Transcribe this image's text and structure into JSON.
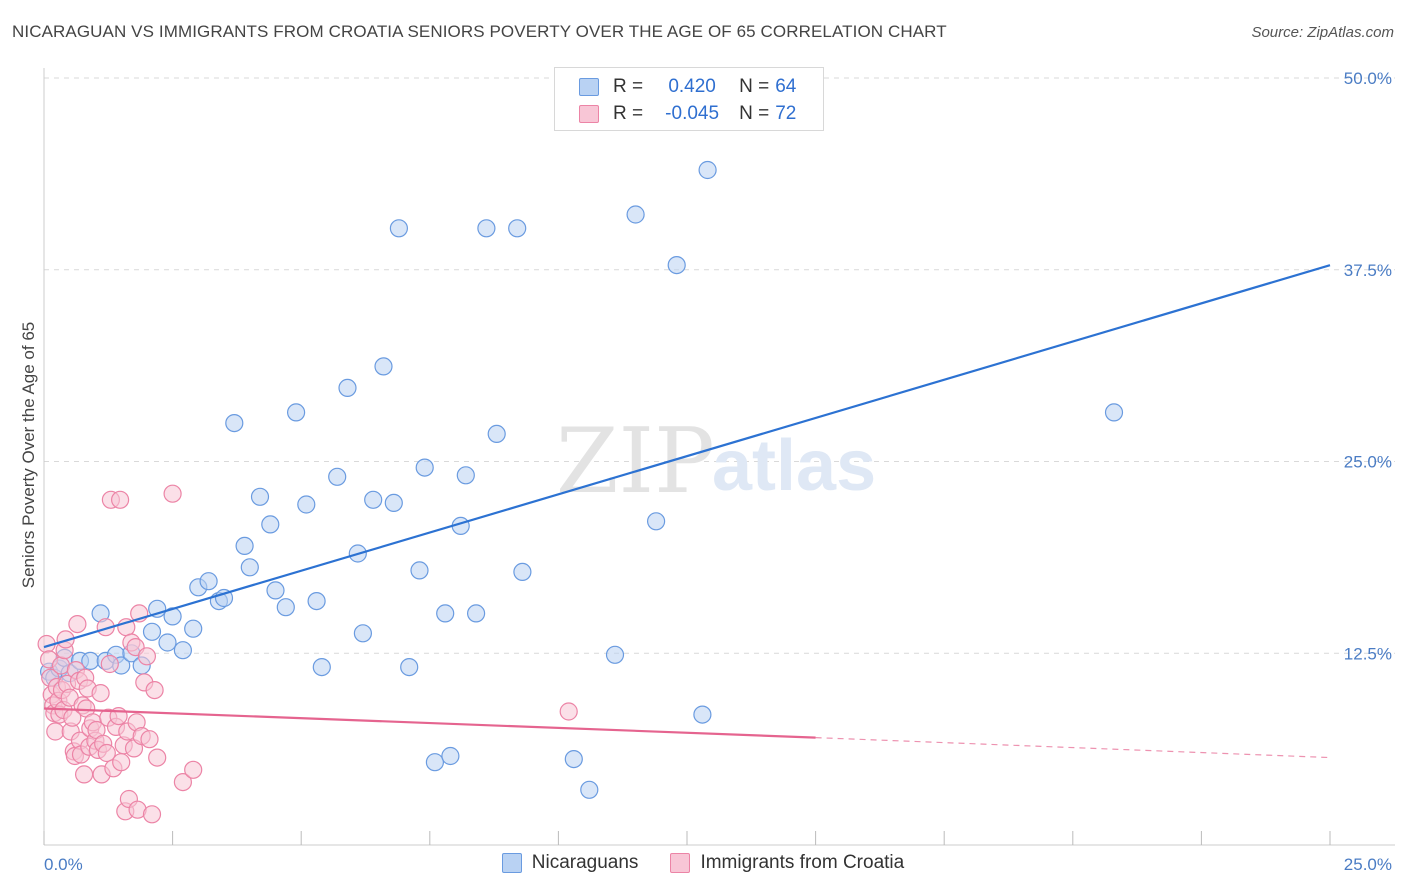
{
  "title": "NICARAGUAN VS IMMIGRANTS FROM CROATIA SENIORS POVERTY OVER THE AGE OF 65 CORRELATION CHART",
  "source": "Source: ZipAtlas.com",
  "watermark": {
    "zip": "ZIP",
    "atlas": "atlas"
  },
  "legend_top": [
    {
      "r_key": "R =",
      "r_value": "0.420",
      "n_key": "N =",
      "n_value": "64",
      "color": "#6a9be0",
      "fill": "#b9d2f3"
    },
    {
      "r_key": "R =",
      "r_value": "-0.045",
      "n_key": "N =",
      "n_value": "72",
      "color": "#ec84a6",
      "fill": "#f8c6d6"
    }
  ],
  "legend_bottom": [
    {
      "label": "Nicaraguans",
      "color": "#6a9be0",
      "fill": "#b9d2f3"
    },
    {
      "label": "Immigrants from Croatia",
      "color": "#ec84a6",
      "fill": "#f8c6d6"
    }
  ],
  "chart_data": {
    "type": "scatter",
    "title": "NICARAGUAN VS IMMIGRANTS FROM CROATIA SENIORS POVERTY OVER THE AGE OF 65 CORRELATION CHART",
    "xlabel": "",
    "ylabel": "Seniors Poverty Over the Age of 65",
    "xlim": [
      0,
      25
    ],
    "ylim": [
      0,
      50
    ],
    "x_tick_labels": [
      "0.0%",
      "25.0%"
    ],
    "y_ticks": [
      12.5,
      25.0,
      37.5,
      50.0
    ],
    "y_tick_labels": [
      "12.5%",
      "25.0%",
      "37.5%",
      "50.0%"
    ],
    "grid": true,
    "series": [
      {
        "name": "Nicaraguans",
        "color": "#6a9be0",
        "fill": "#b9d2f3",
        "trend": {
          "x": [
            0.0,
            25.0
          ],
          "y": [
            12.9,
            37.8
          ],
          "line_color": "#2c72d2"
        },
        "points": [
          [
            0.1,
            11.3
          ],
          [
            0.2,
            10.9
          ],
          [
            0.3,
            11.5
          ],
          [
            0.4,
            12.2
          ],
          [
            0.5,
            11.2
          ],
          [
            0.7,
            12.0
          ],
          [
            0.9,
            12.0
          ],
          [
            1.1,
            15.1
          ],
          [
            1.2,
            12.0
          ],
          [
            1.4,
            12.4
          ],
          [
            1.5,
            11.7
          ],
          [
            1.7,
            12.5
          ],
          [
            1.9,
            11.7
          ],
          [
            2.1,
            13.9
          ],
          [
            2.2,
            15.4
          ],
          [
            2.4,
            13.2
          ],
          [
            2.5,
            14.9
          ],
          [
            2.7,
            12.7
          ],
          [
            2.9,
            14.1
          ],
          [
            3.0,
            16.8
          ],
          [
            3.2,
            17.2
          ],
          [
            3.4,
            15.9
          ],
          [
            3.5,
            16.1
          ],
          [
            3.7,
            27.5
          ],
          [
            3.9,
            19.5
          ],
          [
            4.0,
            18.1
          ],
          [
            4.2,
            22.7
          ],
          [
            4.4,
            20.9
          ],
          [
            4.5,
            16.6
          ],
          [
            4.7,
            15.5
          ],
          [
            4.9,
            28.2
          ],
          [
            5.1,
            22.2
          ],
          [
            5.3,
            15.9
          ],
          [
            5.4,
            11.6
          ],
          [
            5.7,
            24.0
          ],
          [
            5.9,
            29.8
          ],
          [
            6.1,
            19.0
          ],
          [
            6.2,
            13.8
          ],
          [
            6.4,
            22.5
          ],
          [
            6.6,
            31.2
          ],
          [
            6.8,
            22.3
          ],
          [
            6.9,
            40.2
          ],
          [
            7.1,
            11.6
          ],
          [
            7.3,
            17.9
          ],
          [
            7.4,
            24.6
          ],
          [
            7.6,
            5.4
          ],
          [
            7.8,
            15.1
          ],
          [
            7.9,
            5.8
          ],
          [
            8.1,
            20.8
          ],
          [
            8.2,
            24.1
          ],
          [
            8.4,
            15.1
          ],
          [
            8.6,
            40.2
          ],
          [
            8.8,
            26.8
          ],
          [
            9.2,
            40.2
          ],
          [
            9.3,
            17.8
          ],
          [
            10.3,
            5.6
          ],
          [
            10.6,
            3.6
          ],
          [
            11.1,
            12.4
          ],
          [
            11.5,
            41.1
          ],
          [
            11.9,
            21.1
          ],
          [
            12.3,
            37.8
          ],
          [
            12.8,
            8.5
          ],
          [
            12.9,
            44.0
          ],
          [
            20.8,
            28.2
          ]
        ]
      },
      {
        "name": "Immigrants from Croatia",
        "color": "#ec84a6",
        "fill": "#f8c6d6",
        "trend": {
          "x": [
            0.0,
            15.0
          ],
          "y": [
            8.9,
            7.0
          ],
          "line_color": "#e5648f",
          "dashed_to": [
            25.0,
            5.7
          ]
        },
        "points": [
          [
            0.05,
            13.1
          ],
          [
            0.1,
            12.1
          ],
          [
            0.12,
            10.9
          ],
          [
            0.15,
            9.8
          ],
          [
            0.18,
            9.1
          ],
          [
            0.2,
            8.6
          ],
          [
            0.22,
            7.4
          ],
          [
            0.25,
            10.3
          ],
          [
            0.28,
            9.4
          ],
          [
            0.3,
            8.5
          ],
          [
            0.33,
            11.7
          ],
          [
            0.35,
            10.1
          ],
          [
            0.38,
            8.8
          ],
          [
            0.4,
            12.7
          ],
          [
            0.42,
            13.4
          ],
          [
            0.45,
            10.5
          ],
          [
            0.5,
            9.6
          ],
          [
            0.52,
            7.4
          ],
          [
            0.55,
            8.3
          ],
          [
            0.58,
            6.1
          ],
          [
            0.6,
            5.8
          ],
          [
            0.62,
            11.4
          ],
          [
            0.65,
            14.4
          ],
          [
            0.68,
            10.7
          ],
          [
            0.7,
            6.8
          ],
          [
            0.72,
            5.9
          ],
          [
            0.75,
            9.1
          ],
          [
            0.78,
            4.6
          ],
          [
            0.8,
            10.9
          ],
          [
            0.82,
            8.9
          ],
          [
            0.85,
            10.2
          ],
          [
            0.88,
            6.4
          ],
          [
            0.9,
            7.6
          ],
          [
            0.95,
            8.0
          ],
          [
            1.0,
            6.8
          ],
          [
            1.02,
            7.5
          ],
          [
            1.05,
            6.2
          ],
          [
            1.1,
            9.9
          ],
          [
            1.12,
            4.6
          ],
          [
            1.15,
            6.6
          ],
          [
            1.2,
            14.2
          ],
          [
            1.22,
            6.0
          ],
          [
            1.25,
            8.3
          ],
          [
            1.28,
            11.8
          ],
          [
            1.3,
            22.5
          ],
          [
            1.35,
            5.0
          ],
          [
            1.4,
            7.7
          ],
          [
            1.45,
            8.4
          ],
          [
            1.48,
            22.5
          ],
          [
            1.5,
            5.4
          ],
          [
            1.55,
            6.5
          ],
          [
            1.58,
            2.2
          ],
          [
            1.6,
            14.2
          ],
          [
            1.62,
            7.4
          ],
          [
            1.65,
            3.0
          ],
          [
            1.7,
            13.2
          ],
          [
            1.75,
            6.3
          ],
          [
            1.78,
            12.9
          ],
          [
            1.8,
            8.0
          ],
          [
            1.82,
            2.3
          ],
          [
            1.85,
            15.1
          ],
          [
            1.9,
            7.1
          ],
          [
            1.95,
            10.6
          ],
          [
            2.0,
            12.3
          ],
          [
            2.05,
            6.9
          ],
          [
            2.1,
            2.0
          ],
          [
            2.15,
            10.1
          ],
          [
            2.2,
            5.7
          ],
          [
            2.5,
            22.9
          ],
          [
            2.7,
            4.1
          ],
          [
            2.9,
            4.9
          ],
          [
            10.2,
            8.7
          ]
        ]
      }
    ]
  }
}
